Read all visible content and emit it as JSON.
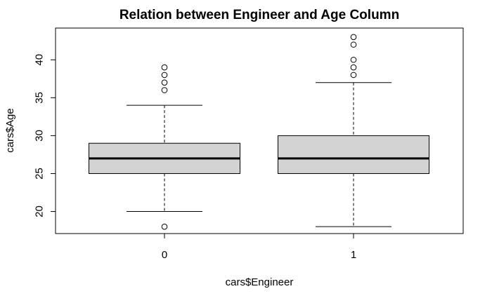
{
  "chart_data": {
    "type": "boxplot",
    "title": "Relation between Engineer and Age Column",
    "xlabel": "cars$Engineer",
    "ylabel": "cars$Age",
    "categories": [
      "0",
      "1"
    ],
    "ylim": [
      17,
      44
    ],
    "yticks": [
      20,
      25,
      30,
      35,
      40
    ],
    "boxes": [
      {
        "category": "0",
        "lower_whisker": 20,
        "q1": 25,
        "median": 27,
        "q3": 29,
        "upper_whisker": 34,
        "outliers": [
          18,
          36,
          37,
          38,
          39
        ]
      },
      {
        "category": "1",
        "lower_whisker": 18,
        "q1": 25,
        "median": 27,
        "q3": 30,
        "upper_whisker": 37,
        "outliers": [
          38,
          39,
          40,
          42,
          43
        ]
      }
    ],
    "colors": {
      "box_fill": "#d3d3d3",
      "stroke": "#000000"
    }
  }
}
